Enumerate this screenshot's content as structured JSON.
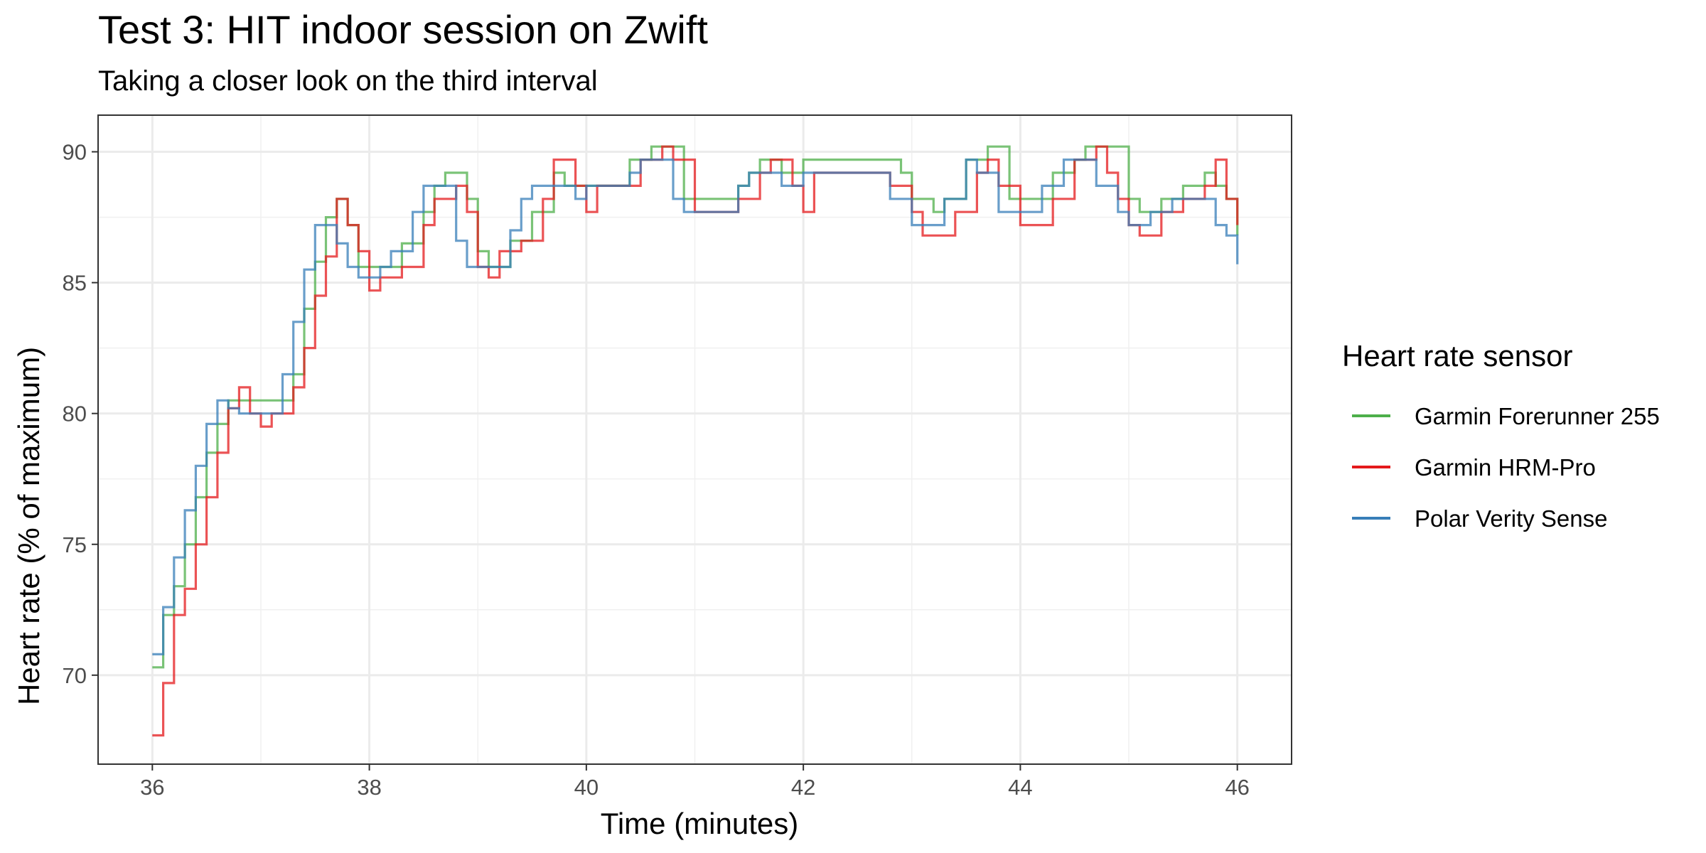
{
  "chart_data": {
    "type": "line",
    "title": "Test 3: HIT indoor session on Zwift",
    "subtitle": "Taking a closer look on the third interval",
    "xlabel": "Time (minutes)",
    "ylabel": "Heart rate (% of maximum)",
    "xlim": [
      35.5,
      46.5
    ],
    "ylim": [
      66.6,
      91.4
    ],
    "x_ticks": [
      36,
      38,
      40,
      42,
      44,
      46
    ],
    "y_ticks": [
      70,
      75,
      80,
      85,
      90
    ],
    "grid": true,
    "legend": {
      "title": "Heart rate sensor",
      "position": "right"
    },
    "series": [
      {
        "name": "Garmin Forerunner 255",
        "color": "#4DAF4A",
        "points": [
          [
            36.0,
            70.3
          ],
          [
            36.1,
            72.3
          ],
          [
            36.2,
            73.4
          ],
          [
            36.3,
            75.0
          ],
          [
            36.4,
            76.8
          ],
          [
            36.5,
            78.5
          ],
          [
            36.6,
            79.6
          ],
          [
            36.7,
            80.5
          ],
          [
            37.0,
            80.5
          ],
          [
            37.2,
            80.5
          ],
          [
            37.3,
            81.5
          ],
          [
            37.4,
            84.0
          ],
          [
            37.5,
            85.8
          ],
          [
            37.6,
            87.5
          ],
          [
            37.7,
            88.2
          ],
          [
            37.8,
            87.2
          ],
          [
            37.9,
            85.6
          ],
          [
            38.0,
            85.6
          ],
          [
            38.2,
            85.6
          ],
          [
            38.3,
            86.5
          ],
          [
            38.5,
            87.7
          ],
          [
            38.6,
            88.7
          ],
          [
            38.7,
            89.2
          ],
          [
            38.9,
            88.2
          ],
          [
            39.0,
            86.2
          ],
          [
            39.1,
            85.6
          ],
          [
            39.3,
            86.6
          ],
          [
            39.5,
            87.7
          ],
          [
            39.7,
            89.2
          ],
          [
            39.8,
            88.7
          ],
          [
            40.0,
            88.7
          ],
          [
            40.2,
            88.7
          ],
          [
            40.4,
            89.7
          ],
          [
            40.6,
            90.2
          ],
          [
            40.8,
            90.2
          ],
          [
            40.9,
            88.2
          ],
          [
            41.0,
            88.2
          ],
          [
            41.3,
            88.2
          ],
          [
            41.4,
            88.7
          ],
          [
            41.5,
            89.2
          ],
          [
            41.6,
            89.7
          ],
          [
            41.8,
            89.2
          ],
          [
            42.0,
            89.7
          ],
          [
            42.3,
            89.7
          ],
          [
            42.7,
            89.7
          ],
          [
            42.8,
            89.7
          ],
          [
            42.9,
            89.2
          ],
          [
            43.0,
            88.2
          ],
          [
            43.2,
            87.7
          ],
          [
            43.3,
            88.2
          ],
          [
            43.5,
            89.7
          ],
          [
            43.7,
            90.2
          ],
          [
            43.9,
            88.2
          ],
          [
            44.1,
            88.2
          ],
          [
            44.3,
            89.2
          ],
          [
            44.5,
            89.7
          ],
          [
            44.6,
            90.2
          ],
          [
            44.8,
            90.2
          ],
          [
            45.0,
            88.2
          ],
          [
            45.1,
            87.7
          ],
          [
            45.3,
            88.2
          ],
          [
            45.5,
            88.7
          ],
          [
            45.7,
            89.2
          ],
          [
            45.8,
            88.7
          ],
          [
            45.9,
            88.2
          ],
          [
            46.0,
            86.8
          ]
        ]
      },
      {
        "name": "Garmin HRM-Pro",
        "color": "#E41A1C",
        "points": [
          [
            36.0,
            67.7
          ],
          [
            36.1,
            69.7
          ],
          [
            36.2,
            72.3
          ],
          [
            36.3,
            73.3
          ],
          [
            36.4,
            75.0
          ],
          [
            36.5,
            76.8
          ],
          [
            36.6,
            78.5
          ],
          [
            36.7,
            80.2
          ],
          [
            36.8,
            81.0
          ],
          [
            36.9,
            80.0
          ],
          [
            37.0,
            79.5
          ],
          [
            37.1,
            80.0
          ],
          [
            37.3,
            81.0
          ],
          [
            37.4,
            82.5
          ],
          [
            37.5,
            84.5
          ],
          [
            37.6,
            86.0
          ],
          [
            37.7,
            88.2
          ],
          [
            37.8,
            87.2
          ],
          [
            37.9,
            86.2
          ],
          [
            38.0,
            84.7
          ],
          [
            38.1,
            85.2
          ],
          [
            38.3,
            85.6
          ],
          [
            38.5,
            87.2
          ],
          [
            38.6,
            88.2
          ],
          [
            38.8,
            88.7
          ],
          [
            38.9,
            87.7
          ],
          [
            39.0,
            85.6
          ],
          [
            39.1,
            85.2
          ],
          [
            39.2,
            86.2
          ],
          [
            39.4,
            86.6
          ],
          [
            39.6,
            88.2
          ],
          [
            39.7,
            89.7
          ],
          [
            39.9,
            88.7
          ],
          [
            40.0,
            87.7
          ],
          [
            40.1,
            88.7
          ],
          [
            40.3,
            88.7
          ],
          [
            40.5,
            89.7
          ],
          [
            40.7,
            90.2
          ],
          [
            40.8,
            89.7
          ],
          [
            41.0,
            87.7
          ],
          [
            41.3,
            87.7
          ],
          [
            41.4,
            88.2
          ],
          [
            41.6,
            89.2
          ],
          [
            41.7,
            89.7
          ],
          [
            41.9,
            88.7
          ],
          [
            42.0,
            87.7
          ],
          [
            42.1,
            89.2
          ],
          [
            42.4,
            89.2
          ],
          [
            42.6,
            89.2
          ],
          [
            42.8,
            88.7
          ],
          [
            42.9,
            88.7
          ],
          [
            43.0,
            87.7
          ],
          [
            43.1,
            86.8
          ],
          [
            43.3,
            86.8
          ],
          [
            43.4,
            87.7
          ],
          [
            43.6,
            89.2
          ],
          [
            43.7,
            89.7
          ],
          [
            43.8,
            88.7
          ],
          [
            44.0,
            87.2
          ],
          [
            44.1,
            87.2
          ],
          [
            44.3,
            88.2
          ],
          [
            44.5,
            89.7
          ],
          [
            44.7,
            90.2
          ],
          [
            44.8,
            89.2
          ],
          [
            44.9,
            88.2
          ],
          [
            45.0,
            87.2
          ],
          [
            45.1,
            86.8
          ],
          [
            45.3,
            87.7
          ],
          [
            45.5,
            88.2
          ],
          [
            45.7,
            88.7
          ],
          [
            45.8,
            89.7
          ],
          [
            45.9,
            88.2
          ],
          [
            46.0,
            87.2
          ]
        ]
      },
      {
        "name": "Polar Verity Sense",
        "color": "#377EB8",
        "points": [
          [
            36.0,
            70.8
          ],
          [
            36.1,
            72.6
          ],
          [
            36.2,
            74.5
          ],
          [
            36.3,
            76.3
          ],
          [
            36.4,
            78.0
          ],
          [
            36.5,
            79.6
          ],
          [
            36.6,
            80.5
          ],
          [
            36.7,
            80.2
          ],
          [
            36.8,
            80.0
          ],
          [
            37.0,
            80.0
          ],
          [
            37.2,
            81.5
          ],
          [
            37.3,
            83.5
          ],
          [
            37.4,
            85.5
          ],
          [
            37.5,
            87.2
          ],
          [
            37.6,
            87.2
          ],
          [
            37.7,
            86.5
          ],
          [
            37.8,
            85.6
          ],
          [
            37.9,
            85.2
          ],
          [
            38.1,
            85.6
          ],
          [
            38.2,
            86.2
          ],
          [
            38.4,
            87.7
          ],
          [
            38.5,
            88.7
          ],
          [
            38.7,
            88.7
          ],
          [
            38.8,
            86.6
          ],
          [
            38.9,
            85.6
          ],
          [
            39.1,
            85.6
          ],
          [
            39.3,
            87.0
          ],
          [
            39.4,
            88.2
          ],
          [
            39.5,
            88.7
          ],
          [
            39.7,
            88.7
          ],
          [
            39.9,
            88.2
          ],
          [
            40.0,
            88.7
          ],
          [
            40.3,
            88.7
          ],
          [
            40.4,
            89.2
          ],
          [
            40.5,
            89.7
          ],
          [
            40.6,
            89.7
          ],
          [
            40.8,
            88.2
          ],
          [
            40.9,
            87.7
          ],
          [
            41.2,
            87.7
          ],
          [
            41.4,
            88.7
          ],
          [
            41.5,
            89.2
          ],
          [
            41.7,
            89.2
          ],
          [
            41.8,
            88.7
          ],
          [
            42.0,
            89.2
          ],
          [
            42.4,
            89.2
          ],
          [
            42.7,
            89.2
          ],
          [
            42.8,
            88.2
          ],
          [
            43.0,
            87.2
          ],
          [
            43.2,
            87.2
          ],
          [
            43.3,
            88.2
          ],
          [
            43.5,
            89.7
          ],
          [
            43.6,
            89.2
          ],
          [
            43.8,
            87.7
          ],
          [
            44.0,
            87.7
          ],
          [
            44.2,
            88.7
          ],
          [
            44.4,
            89.7
          ],
          [
            44.6,
            89.7
          ],
          [
            44.7,
            88.7
          ],
          [
            44.9,
            87.7
          ],
          [
            45.0,
            87.2
          ],
          [
            45.2,
            87.7
          ],
          [
            45.4,
            88.2
          ],
          [
            45.6,
            88.2
          ],
          [
            45.7,
            88.2
          ],
          [
            45.8,
            87.2
          ],
          [
            45.9,
            86.8
          ],
          [
            46.0,
            85.7
          ]
        ]
      }
    ]
  }
}
